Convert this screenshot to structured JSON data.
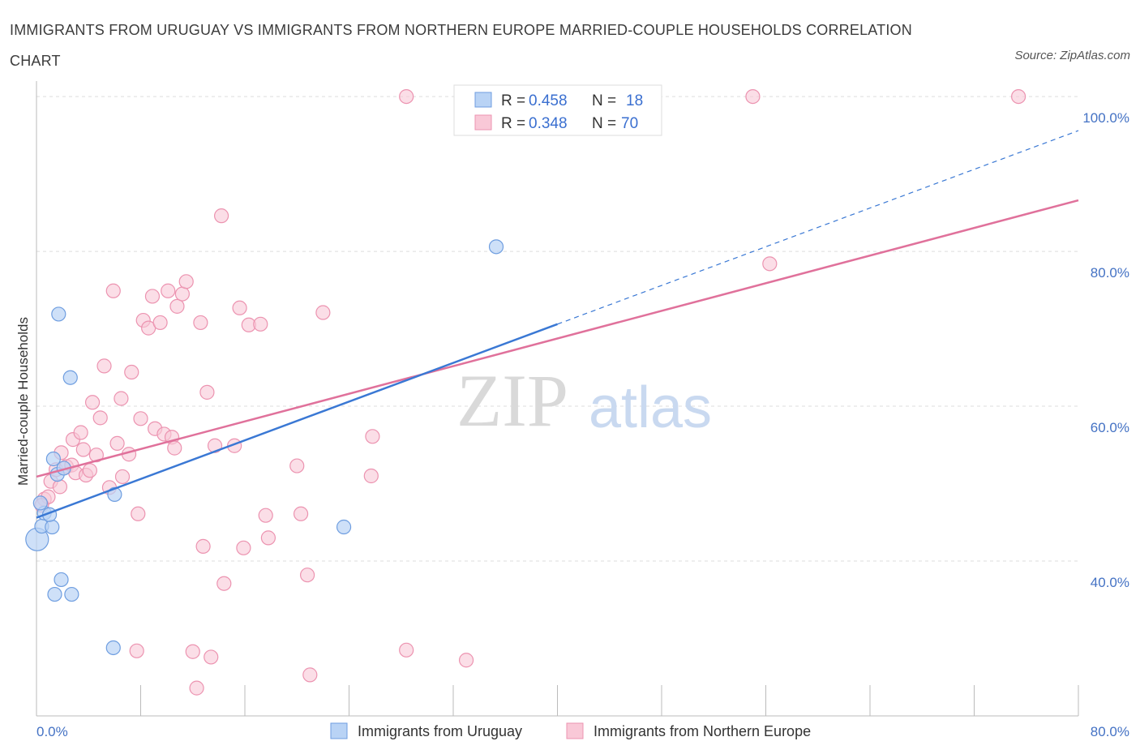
{
  "title": "IMMIGRANTS FROM URUGUAY VS IMMIGRANTS FROM NORTHERN EUROPE MARRIED-COUPLE HOUSEHOLDS CORRELATION CHART",
  "source": "Source: ZipAtlas.com",
  "watermark": {
    "zip": "ZIP",
    "atlas": "atlas"
  },
  "colors": {
    "uruguay_fill": "#b9d3f5",
    "uruguay_stroke": "#6f9ee0",
    "uruguay_line": "#3a78d4",
    "neurope_fill": "#f9c8d7",
    "neurope_stroke": "#ec93b0",
    "neurope_line": "#e0719b",
    "tick_text": "#4472c4",
    "grid": "#dddddd"
  },
  "legend": {
    "rows": [
      {
        "r_label": "R =",
        "r_value": "0.458",
        "n_label": "N =",
        "n_value": "18"
      },
      {
        "r_label": "R =",
        "r_value": "0.348",
        "n_label": "N =",
        "n_value": "70"
      }
    ]
  },
  "chart_data": {
    "type": "scatter",
    "title": "IMMIGRANTS FROM URUGUAY VS IMMIGRANTS FROM NORTHERN EUROPE MARRIED-COUPLE HOUSEHOLDS CORRELATION CHART",
    "xlabel": "",
    "ylabel": "Married-couple Households",
    "xlim": [
      0,
      80
    ],
    "ylim": [
      20,
      102
    ],
    "x_tick_labels": [
      "0.0%",
      "80.0%"
    ],
    "y_ticks": [
      40,
      60,
      80,
      100
    ],
    "y_tick_labels": [
      "40.0%",
      "60.0%",
      "80.0%",
      "100.0%"
    ],
    "grid": true,
    "legend_position": "top-center",
    "series": [
      {
        "name": "Immigrants from Uruguay",
        "R": 0.458,
        "N": 18,
        "trend": {
          "x_start": 0,
          "y_start": 45.6,
          "x_end": 40,
          "y_end": 70.6,
          "dashed_to_x": 80,
          "dashed_to_y": 95.6
        },
        "points": [
          {
            "x": 0.05,
            "y": 42.8,
            "big": true
          },
          {
            "x": 0.4,
            "y": 44.5
          },
          {
            "x": 0.6,
            "y": 46.2
          },
          {
            "x": 0.3,
            "y": 47.5
          },
          {
            "x": 1.2,
            "y": 44.4
          },
          {
            "x": 1.0,
            "y": 46.0
          },
          {
            "x": 1.3,
            "y": 53.2
          },
          {
            "x": 1.6,
            "y": 51.2
          },
          {
            "x": 2.1,
            "y": 52.0
          },
          {
            "x": 1.7,
            "y": 71.9
          },
          {
            "x": 2.6,
            "y": 63.7
          },
          {
            "x": 1.4,
            "y": 35.7
          },
          {
            "x": 1.9,
            "y": 37.6
          },
          {
            "x": 2.7,
            "y": 35.7
          },
          {
            "x": 6.0,
            "y": 48.6
          },
          {
            "x": 5.9,
            "y": 28.8
          },
          {
            "x": 23.6,
            "y": 44.4
          },
          {
            "x": 35.3,
            "y": 80.6
          }
        ]
      },
      {
        "name": "Immigrants from Northern Europe",
        "R": 0.348,
        "N": 70,
        "trend": {
          "x_start": 0,
          "y_start": 50.9,
          "x_end": 80,
          "y_end": 86.6
        },
        "points": [
          {
            "x": 0.6,
            "y": 48.0
          },
          {
            "x": 0.9,
            "y": 48.3
          },
          {
            "x": 0.4,
            "y": 47.2
          },
          {
            "x": 1.1,
            "y": 50.3
          },
          {
            "x": 1.5,
            "y": 51.8
          },
          {
            "x": 1.8,
            "y": 49.6
          },
          {
            "x": 1.9,
            "y": 54.0
          },
          {
            "x": 2.3,
            "y": 52.2
          },
          {
            "x": 2.7,
            "y": 52.4
          },
          {
            "x": 2.8,
            "y": 55.7
          },
          {
            "x": 3.0,
            "y": 51.4
          },
          {
            "x": 3.4,
            "y": 56.6
          },
          {
            "x": 3.6,
            "y": 54.4
          },
          {
            "x": 3.8,
            "y": 51.1
          },
          {
            "x": 4.1,
            "y": 51.7
          },
          {
            "x": 4.3,
            "y": 60.5
          },
          {
            "x": 4.6,
            "y": 53.7
          },
          {
            "x": 4.9,
            "y": 58.5
          },
          {
            "x": 5.2,
            "y": 65.2
          },
          {
            "x": 5.6,
            "y": 49.5
          },
          {
            "x": 5.9,
            "y": 74.9
          },
          {
            "x": 6.2,
            "y": 55.2
          },
          {
            "x": 6.5,
            "y": 61.0
          },
          {
            "x": 6.6,
            "y": 50.9
          },
          {
            "x": 7.1,
            "y": 53.8
          },
          {
            "x": 7.3,
            "y": 64.4
          },
          {
            "x": 7.8,
            "y": 46.1
          },
          {
            "x": 8.0,
            "y": 58.4
          },
          {
            "x": 8.2,
            "y": 71.1
          },
          {
            "x": 8.6,
            "y": 70.1
          },
          {
            "x": 8.9,
            "y": 74.2
          },
          {
            "x": 9.1,
            "y": 57.1
          },
          {
            "x": 9.5,
            "y": 70.8
          },
          {
            "x": 9.8,
            "y": 56.4
          },
          {
            "x": 10.1,
            "y": 74.9
          },
          {
            "x": 10.4,
            "y": 56.0
          },
          {
            "x": 10.6,
            "y": 54.6
          },
          {
            "x": 10.8,
            "y": 72.9
          },
          {
            "x": 11.2,
            "y": 74.5
          },
          {
            "x": 11.5,
            "y": 76.1
          },
          {
            "x": 12.6,
            "y": 70.8
          },
          {
            "x": 12.8,
            "y": 41.9
          },
          {
            "x": 13.1,
            "y": 61.8
          },
          {
            "x": 13.7,
            "y": 54.9
          },
          {
            "x": 14.2,
            "y": 84.6
          },
          {
            "x": 14.4,
            "y": 37.1
          },
          {
            "x": 15.6,
            "y": 72.7
          },
          {
            "x": 15.9,
            "y": 41.7
          },
          {
            "x": 16.3,
            "y": 70.5
          },
          {
            "x": 15.2,
            "y": 54.9
          },
          {
            "x": 17.2,
            "y": 70.6
          },
          {
            "x": 17.6,
            "y": 45.9
          },
          {
            "x": 17.8,
            "y": 43.0
          },
          {
            "x": 20.0,
            "y": 52.3
          },
          {
            "x": 20.3,
            "y": 46.1
          },
          {
            "x": 20.8,
            "y": 38.2
          },
          {
            "x": 22.0,
            "y": 72.1
          },
          {
            "x": 25.8,
            "y": 56.1
          },
          {
            "x": 25.7,
            "y": 51.0
          },
          {
            "x": 28.4,
            "y": 100.0
          },
          {
            "x": 28.4,
            "y": 28.5
          },
          {
            "x": 33.0,
            "y": 27.2
          },
          {
            "x": 7.7,
            "y": 28.4
          },
          {
            "x": 12.0,
            "y": 28.3
          },
          {
            "x": 13.4,
            "y": 27.6
          },
          {
            "x": 12.3,
            "y": 23.6
          },
          {
            "x": 21.0,
            "y": 25.3
          },
          {
            "x": 55.0,
            "y": 100.0
          },
          {
            "x": 75.4,
            "y": 100.0
          },
          {
            "x": 56.3,
            "y": 78.4
          }
        ]
      }
    ]
  }
}
